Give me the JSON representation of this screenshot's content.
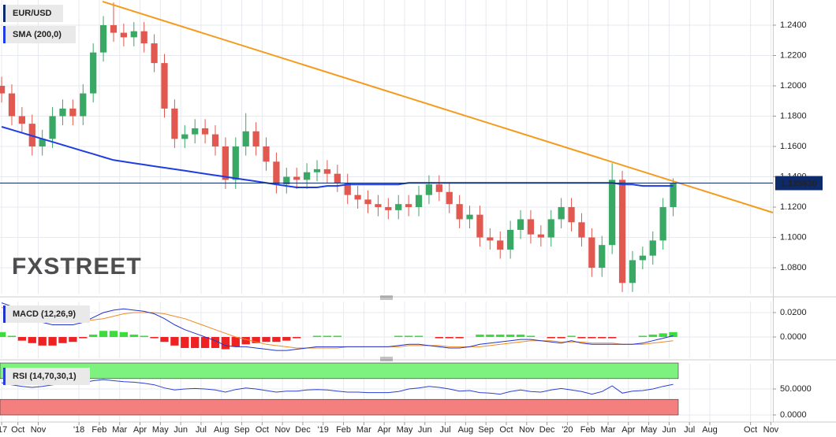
{
  "chart_data": [
    {
      "type": "candlestick",
      "title": "EUR/USD",
      "watermark": "FXSTREET",
      "up_color": "#3aa865",
      "down_color": "#e0584f",
      "xlim": [
        8.12,
        46.1
      ],
      "ylim": [
        1.0629,
        1.2566
      ],
      "yticks": [
        {
          "value": 1.08,
          "label": "1.0800"
        },
        {
          "value": 1.1,
          "label": "1.1000"
        },
        {
          "value": 1.12,
          "label": "1.1200"
        },
        {
          "value": 1.14,
          "label": "1.1400"
        },
        {
          "value": 1.16,
          "label": "1.1600"
        },
        {
          "value": 1.18,
          "label": "1.1800"
        },
        {
          "value": 1.2,
          "label": "1.2000"
        },
        {
          "value": 1.22,
          "label": "1.2200"
        },
        {
          "value": 1.24,
          "label": "1.2400"
        }
      ],
      "x": [
        8.2,
        8.7,
        9.2,
        9.7,
        10.2,
        10.7,
        11.2,
        11.7,
        12.2,
        12.7,
        13.2,
        13.7,
        14.2,
        14.7,
        15.2,
        15.7,
        16.2,
        16.7,
        17.2,
        17.7,
        18.2,
        18.7,
        19.2,
        19.7,
        20.2,
        20.7,
        21.2,
        21.7,
        22.2,
        22.7,
        23.2,
        23.7,
        24.2,
        24.7,
        25.2,
        25.7,
        26.2,
        26.7,
        27.2,
        27.7,
        28.2,
        28.7,
        29.2,
        29.7,
        30.2,
        30.7,
        31.2,
        31.7,
        32.2,
        32.7,
        33.2,
        33.7,
        34.2,
        34.7,
        35.2,
        35.7,
        36.2,
        36.7,
        37.2,
        37.7,
        38.2,
        38.7,
        39.2,
        39.7,
        40.2,
        40.7,
        41.2
      ],
      "open": [
        1.2,
        1.195,
        1.18,
        1.175,
        1.16,
        1.165,
        1.18,
        1.185,
        1.18,
        1.195,
        1.222,
        1.24,
        1.235,
        1.232,
        1.236,
        1.228,
        1.215,
        1.185,
        1.165,
        1.168,
        1.172,
        1.168,
        1.16,
        1.138,
        1.16,
        1.17,
        1.16,
        1.15,
        1.135,
        1.14,
        1.138,
        1.143,
        1.145,
        1.142,
        1.136,
        1.128,
        1.125,
        1.122,
        1.12,
        1.118,
        1.122,
        1.12,
        1.128,
        1.135,
        1.13,
        1.122,
        1.112,
        1.115,
        1.1,
        1.098,
        1.092,
        1.105,
        1.112,
        1.102,
        1.1,
        1.112,
        1.12,
        1.11,
        1.1,
        1.08,
        1.095,
        1.138,
        1.07,
        1.085,
        1.088,
        1.098,
        1.12
      ],
      "high": [
        1.206,
        1.201,
        1.186,
        1.181,
        1.171,
        1.186,
        1.191,
        1.191,
        1.201,
        1.228,
        1.246,
        1.255,
        1.241,
        1.242,
        1.242,
        1.234,
        1.221,
        1.191,
        1.174,
        1.178,
        1.178,
        1.174,
        1.166,
        1.166,
        1.182,
        1.176,
        1.166,
        1.156,
        1.146,
        1.146,
        1.149,
        1.151,
        1.151,
        1.148,
        1.142,
        1.134,
        1.131,
        1.128,
        1.126,
        1.128,
        1.128,
        1.134,
        1.141,
        1.141,
        1.136,
        1.128,
        1.121,
        1.121,
        1.106,
        1.104,
        1.111,
        1.118,
        1.118,
        1.108,
        1.118,
        1.126,
        1.126,
        1.116,
        1.106,
        1.101,
        1.149,
        1.144,
        1.091,
        1.094,
        1.104,
        1.126,
        1.139
      ],
      "low": [
        1.189,
        1.174,
        1.169,
        1.154,
        1.154,
        1.159,
        1.174,
        1.174,
        1.174,
        1.189,
        1.216,
        1.229,
        1.226,
        1.226,
        1.222,
        1.209,
        1.179,
        1.159,
        1.159,
        1.162,
        1.162,
        1.154,
        1.132,
        1.132,
        1.154,
        1.154,
        1.144,
        1.129,
        1.129,
        1.132,
        1.132,
        1.137,
        1.136,
        1.13,
        1.122,
        1.119,
        1.116,
        1.114,
        1.112,
        1.112,
        1.114,
        1.114,
        1.122,
        1.124,
        1.116,
        1.106,
        1.106,
        1.094,
        1.092,
        1.086,
        1.086,
        1.099,
        1.096,
        1.094,
        1.094,
        1.106,
        1.104,
        1.094,
        1.074,
        1.074,
        1.089,
        1.064,
        1.064,
        1.079,
        1.082,
        1.092,
        1.114
      ],
      "close": [
        1.195,
        1.18,
        1.175,
        1.16,
        1.165,
        1.18,
        1.185,
        1.18,
        1.195,
        1.222,
        1.24,
        1.235,
        1.232,
        1.236,
        1.228,
        1.215,
        1.185,
        1.165,
        1.168,
        1.172,
        1.168,
        1.16,
        1.138,
        1.16,
        1.17,
        1.16,
        1.15,
        1.135,
        1.14,
        1.138,
        1.143,
        1.145,
        1.142,
        1.136,
        1.128,
        1.125,
        1.122,
        1.12,
        1.118,
        1.122,
        1.12,
        1.128,
        1.135,
        1.13,
        1.122,
        1.112,
        1.115,
        1.1,
        1.098,
        1.092,
        1.105,
        1.112,
        1.102,
        1.1,
        1.112,
        1.12,
        1.11,
        1.1,
        1.08,
        1.095,
        1.138,
        1.07,
        1.085,
        1.088,
        1.098,
        1.12,
        1.1358
      ],
      "series": [
        {
          "name": "SMA (200,0)",
          "color": "#1f3de0",
          "values": [
            1.173,
            1.171,
            1.169,
            1.167,
            1.165,
            1.163,
            1.161,
            1.159,
            1.157,
            1.155,
            1.153,
            1.151,
            1.15,
            1.149,
            1.148,
            1.147,
            1.146,
            1.145,
            1.144,
            1.143,
            1.142,
            1.141,
            1.14,
            1.139,
            1.138,
            1.137,
            1.136,
            1.135,
            1.134,
            1.133,
            1.133,
            1.133,
            1.134,
            1.134,
            1.135,
            1.135,
            1.135,
            1.135,
            1.135,
            1.135,
            1.136,
            1.136,
            1.136,
            1.136,
            1.136,
            1.136,
            1.136,
            1.136,
            1.136,
            1.136,
            1.136,
            1.136,
            1.136,
            1.136,
            1.136,
            1.136,
            1.136,
            1.136,
            1.136,
            1.136,
            1.136,
            1.135,
            1.135,
            1.134,
            1.134,
            1.134,
            1.134
          ]
        }
      ],
      "trendline": {
        "color": "#f59a1b",
        "x": [
          13.16,
          46.1
        ],
        "values": [
          1.2556,
          1.1164
        ]
      },
      "last_price": {
        "value": 1.13583,
        "label": "1.135830",
        "color": "#0d2a6b"
      }
    },
    {
      "type": "macd",
      "title": "MACD (12,26,9)",
      "ylim": [
        -0.0174,
        0.029
      ],
      "yticks": [
        {
          "value": 0,
          "label": "0.0000"
        },
        {
          "value": 0.02,
          "label": "0.0200"
        }
      ],
      "macd": {
        "color": "#2233cc",
        "values": [
          0.028,
          0.025,
          0.02,
          0.016,
          0.012,
          0.01,
          0.01,
          0.01,
          0.012,
          0.016,
          0.02,
          0.022,
          0.023,
          0.022,
          0.021,
          0.019,
          0.015,
          0.01,
          0.006,
          0.003,
          0.0,
          -0.003,
          -0.007,
          -0.008,
          -0.008,
          -0.009,
          -0.01,
          -0.011,
          -0.011,
          -0.01,
          -0.009,
          -0.008,
          -0.008,
          -0.008,
          -0.008,
          -0.008,
          -0.008,
          -0.008,
          -0.008,
          -0.007,
          -0.006,
          -0.006,
          -0.007,
          -0.008,
          -0.009,
          -0.009,
          -0.008,
          -0.006,
          -0.005,
          -0.004,
          -0.003,
          -0.002,
          -0.002,
          -0.003,
          -0.004,
          -0.005,
          -0.003,
          -0.005,
          -0.006,
          -0.006,
          -0.006,
          -0.006,
          -0.006,
          -0.005,
          -0.003,
          -0.001,
          0.001
        ]
      },
      "signal": {
        "color": "#f08a24",
        "values": [
          0.024,
          0.024,
          0.023,
          0.021,
          0.019,
          0.017,
          0.015,
          0.014,
          0.013,
          0.014,
          0.015,
          0.017,
          0.019,
          0.02,
          0.02,
          0.02,
          0.019,
          0.017,
          0.015,
          0.012,
          0.009,
          0.006,
          0.003,
          0.0,
          -0.002,
          -0.004,
          -0.006,
          -0.007,
          -0.008,
          -0.009,
          -0.009,
          -0.009,
          -0.009,
          -0.009,
          -0.008,
          -0.008,
          -0.008,
          -0.008,
          -0.008,
          -0.008,
          -0.007,
          -0.007,
          -0.007,
          -0.007,
          -0.008,
          -0.008,
          -0.008,
          -0.008,
          -0.007,
          -0.006,
          -0.005,
          -0.004,
          -0.003,
          -0.003,
          -0.003,
          -0.004,
          -0.004,
          -0.004,
          -0.005,
          -0.005,
          -0.005,
          -0.006,
          -0.006,
          -0.006,
          -0.005,
          -0.004,
          -0.003
        ]
      },
      "histogram": {
        "up_color": "#3ddc3d",
        "down_color": "#ee2222",
        "values": [
          0.004,
          0.001,
          -0.003,
          -0.005,
          -0.007,
          -0.007,
          -0.005,
          -0.004,
          -0.001,
          0.002,
          0.005,
          0.005,
          0.004,
          0.002,
          0.001,
          -0.001,
          -0.004,
          -0.007,
          -0.009,
          -0.009,
          -0.009,
          -0.009,
          -0.01,
          -0.008,
          -0.006,
          -0.005,
          -0.004,
          -0.004,
          -0.003,
          -0.001,
          0.0,
          0.001,
          0.001,
          0.001,
          0.0,
          0.0,
          0.0,
          0.0,
          0.0,
          0.001,
          0.001,
          0.001,
          0.0,
          -0.001,
          -0.001,
          -0.001,
          0.0,
          0.002,
          0.002,
          0.002,
          0.002,
          0.002,
          0.001,
          0.0,
          -0.001,
          -0.001,
          0.001,
          -0.001,
          -0.001,
          -0.001,
          -0.001,
          0.0,
          0.0,
          0.001,
          0.002,
          0.003,
          0.004
        ]
      }
    },
    {
      "type": "rsi",
      "title": "RSI (14,70,30,1)",
      "color": "#2b3fd6",
      "ylim": [
        -12.1,
        98.5
      ],
      "yticks": [
        {
          "value": 0,
          "label": "0.0000"
        },
        {
          "value": 50,
          "label": "50.0000"
        }
      ],
      "overbought_band": {
        "range": [
          70,
          100
        ],
        "color": "#7ef27e"
      },
      "oversold_band": {
        "range": [
          0,
          30
        ],
        "color": "#f47f7f"
      },
      "values": [
        62,
        58,
        55,
        53,
        55,
        58,
        60,
        59,
        62,
        66,
        68,
        66,
        64,
        63,
        61,
        58,
        52,
        48,
        50,
        51,
        50,
        48,
        44,
        49,
        52,
        50,
        47,
        44,
        46,
        46,
        48,
        49,
        48,
        46,
        44,
        44,
        43,
        43,
        43,
        45,
        50,
        52,
        55,
        53,
        50,
        46,
        47,
        43,
        42,
        40,
        45,
        48,
        45,
        44,
        48,
        51,
        48,
        45,
        40,
        45,
        56,
        42,
        46,
        47,
        50,
        55,
        59
      ],
      "xticks": [
        {
          "value": 8.2,
          "label": "'17"
        },
        {
          "value": 9,
          "label": "Oct"
        },
        {
          "value": 10,
          "label": "Nov"
        },
        {
          "value": 12,
          "label": "'18"
        },
        {
          "value": 13,
          "label": "Feb"
        },
        {
          "value": 14,
          "label": "Mar"
        },
        {
          "value": 15,
          "label": "Apr"
        },
        {
          "value": 16,
          "label": "May"
        },
        {
          "value": 17,
          "label": "Jun"
        },
        {
          "value": 18,
          "label": "Jul"
        },
        {
          "value": 19,
          "label": "Aug"
        },
        {
          "value": 20,
          "label": "Sep"
        },
        {
          "value": 21,
          "label": "Oct"
        },
        {
          "value": 22,
          "label": "Nov"
        },
        {
          "value": 23,
          "label": "Dec"
        },
        {
          "value": 24,
          "label": "'19"
        },
        {
          "value": 25,
          "label": "Feb"
        },
        {
          "value": 26,
          "label": "Mar"
        },
        {
          "value": 27,
          "label": "Apr"
        },
        {
          "value": 28,
          "label": "May"
        },
        {
          "value": 29,
          "label": "Jun"
        },
        {
          "value": 30,
          "label": "Jul"
        },
        {
          "value": 31,
          "label": "Aug"
        },
        {
          "value": 32,
          "label": "Sep"
        },
        {
          "value": 33,
          "label": "Oct"
        },
        {
          "value": 34,
          "label": "Nov"
        },
        {
          "value": 35,
          "label": "Dec"
        },
        {
          "value": 36,
          "label": "'20"
        },
        {
          "value": 37,
          "label": "Feb"
        },
        {
          "value": 38,
          "label": "Mar"
        },
        {
          "value": 39,
          "label": "Apr"
        },
        {
          "value": 40,
          "label": "May"
        },
        {
          "value": 41,
          "label": "Jun"
        },
        {
          "value": 42,
          "label": "Jul"
        },
        {
          "value": 43,
          "label": "Aug"
        },
        {
          "value": 45,
          "label": "Oct"
        },
        {
          "value": 46,
          "label": "Nov"
        }
      ]
    }
  ]
}
